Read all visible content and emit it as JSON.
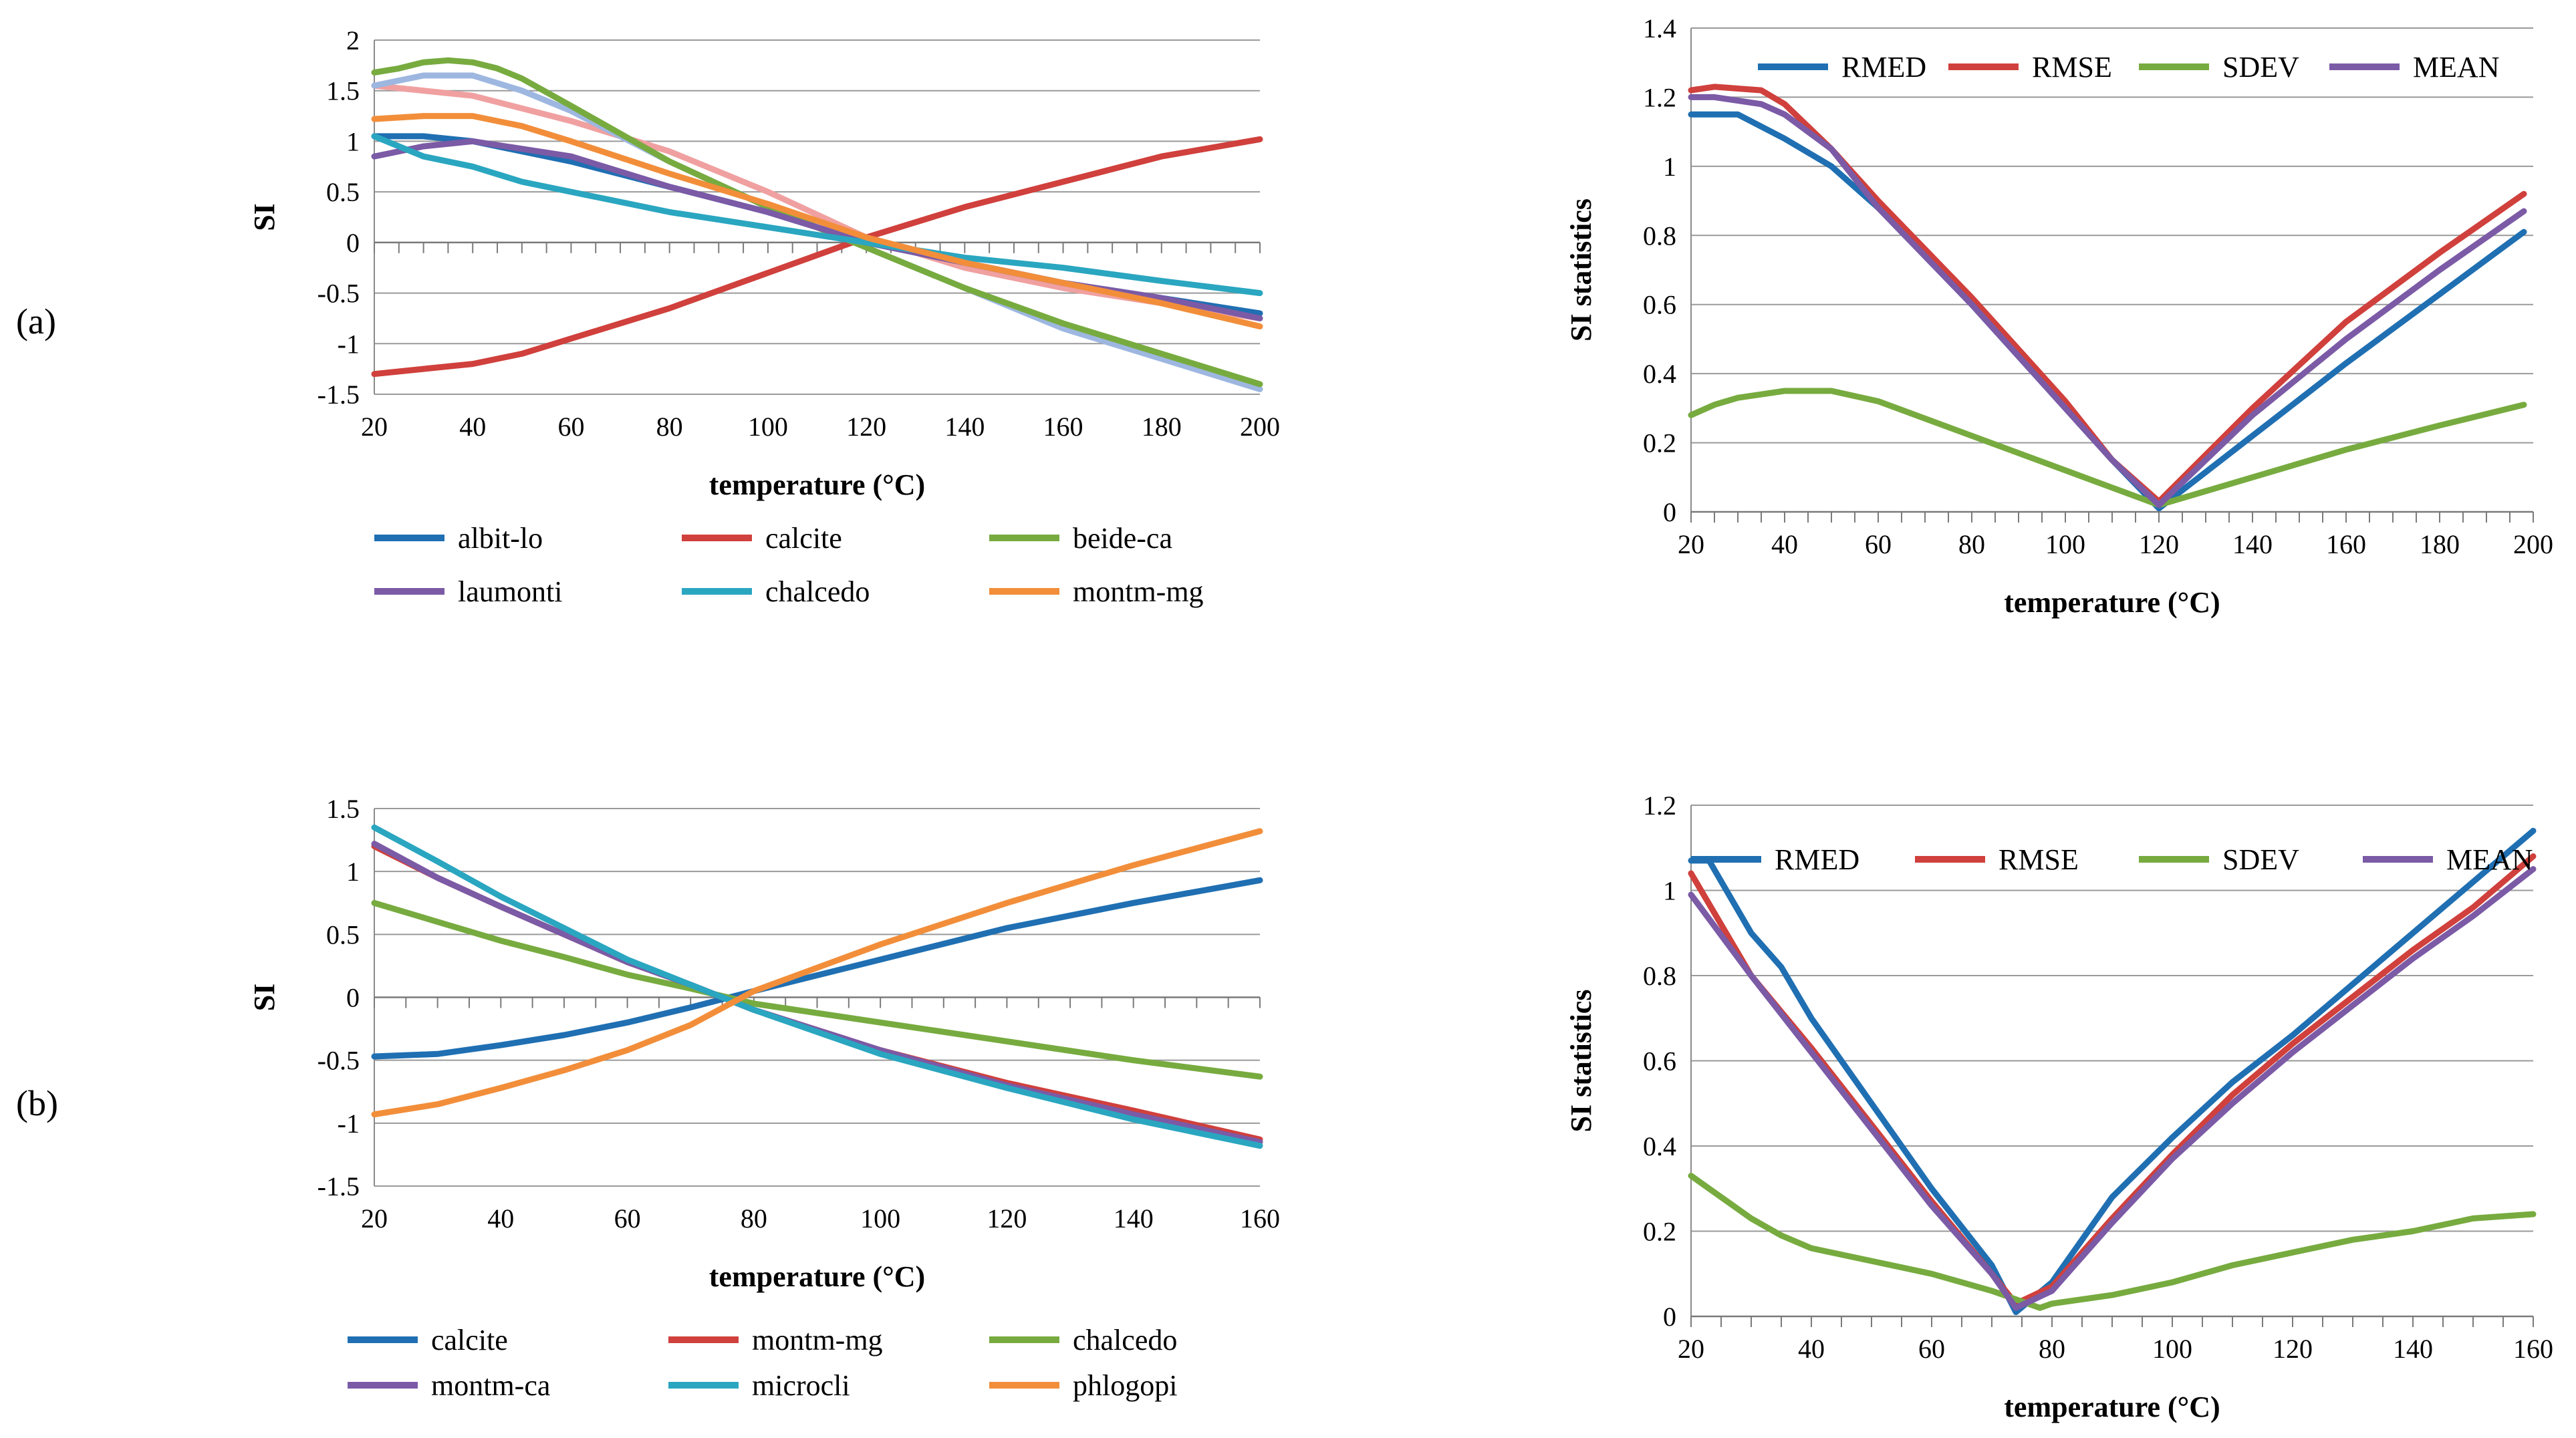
{
  "panel_labels": [
    "(a)",
    "(b)"
  ],
  "chart_data": [
    {
      "id": "a-left",
      "type": "line",
      "title": "",
      "xlabel": "temperature (°C)",
      "ylabel": "SI",
      "xlim": [
        20,
        200
      ],
      "ylim": [
        -1.5,
        2
      ],
      "xticks": [
        20,
        40,
        60,
        80,
        100,
        120,
        140,
        160,
        180,
        200
      ],
      "yticks": [
        -1.5,
        -1,
        -0.5,
        0,
        0.5,
        1,
        1.5,
        2
      ],
      "ytick_labels": [
        "-1.5",
        "-1",
        "-0.5",
        "0",
        "0.5",
        "1",
        "1.5",
        "2"
      ],
      "grid": "horizontal",
      "legend_position": "bottom",
      "legend_columns": 3,
      "series": [
        {
          "name": "pink-unlabeled",
          "legend": false,
          "color": "#f0a0a0",
          "x": [
            20,
            40,
            60,
            80,
            100,
            120,
            140,
            160,
            180,
            200
          ],
          "y": [
            1.55,
            1.45,
            1.2,
            0.9,
            0.5,
            0.05,
            -0.25,
            -0.45,
            -0.6,
            -0.75
          ]
        },
        {
          "name": "lightblue-unlabeled",
          "legend": false,
          "color": "#9db7e0",
          "x": [
            20,
            30,
            40,
            50,
            60,
            80,
            100,
            120,
            140,
            160,
            180,
            200
          ],
          "y": [
            1.55,
            1.65,
            1.65,
            1.5,
            1.3,
            0.8,
            0.35,
            -0.05,
            -0.45,
            -0.85,
            -1.15,
            -1.45
          ]
        },
        {
          "name": "albit-lo",
          "legend": true,
          "color": "#1f6fb2",
          "x": [
            20,
            30,
            40,
            60,
            80,
            100,
            120,
            140,
            160,
            180,
            200
          ],
          "y": [
            1.05,
            1.05,
            1.0,
            0.8,
            0.55,
            0.3,
            0.0,
            -0.2,
            -0.4,
            -0.55,
            -0.7
          ]
        },
        {
          "name": "calcite",
          "legend": true,
          "color": "#d0403c",
          "x": [
            20,
            30,
            40,
            50,
            60,
            80,
            100,
            120,
            140,
            160,
            180,
            200
          ],
          "y": [
            -1.3,
            -1.25,
            -1.2,
            -1.1,
            -0.95,
            -0.65,
            -0.3,
            0.05,
            0.35,
            0.6,
            0.85,
            1.02
          ]
        },
        {
          "name": "beide-ca",
          "legend": true,
          "color": "#77ab3f",
          "x": [
            20,
            25,
            30,
            35,
            40,
            45,
            50,
            60,
            80,
            100,
            120,
            140,
            160,
            180,
            200
          ],
          "y": [
            1.68,
            1.72,
            1.78,
            1.8,
            1.78,
            1.72,
            1.62,
            1.35,
            0.8,
            0.35,
            -0.05,
            -0.45,
            -0.8,
            -1.1,
            -1.4
          ]
        },
        {
          "name": "laumonti",
          "legend": true,
          "color": "#7b5aa6",
          "x": [
            20,
            30,
            40,
            60,
            80,
            100,
            120,
            140,
            160,
            180,
            200
          ],
          "y": [
            0.85,
            0.95,
            1.0,
            0.85,
            0.55,
            0.3,
            0.0,
            -0.2,
            -0.4,
            -0.55,
            -0.75
          ]
        },
        {
          "name": "chalcedo",
          "legend": true,
          "color": "#2aa6c0",
          "x": [
            20,
            30,
            40,
            50,
            60,
            80,
            100,
            120,
            140,
            160,
            180,
            200
          ],
          "y": [
            1.05,
            0.85,
            0.75,
            0.6,
            0.5,
            0.3,
            0.15,
            0.0,
            -0.15,
            -0.25,
            -0.38,
            -0.5
          ]
        },
        {
          "name": "montm-mg",
          "legend": true,
          "color": "#f28e3a",
          "x": [
            20,
            30,
            40,
            50,
            60,
            80,
            100,
            120,
            140,
            160,
            180,
            200
          ],
          "y": [
            1.22,
            1.25,
            1.25,
            1.15,
            1.0,
            0.68,
            0.38,
            0.05,
            -0.2,
            -0.4,
            -0.6,
            -0.83
          ]
        }
      ]
    },
    {
      "id": "a-right",
      "type": "line",
      "title": "",
      "xlabel": "temperature (°C)",
      "ylabel": "SI statistics",
      "xlim": [
        20,
        200
      ],
      "ylim": [
        0,
        1.4
      ],
      "xticks": [
        20,
        40,
        60,
        80,
        100,
        120,
        140,
        160,
        180,
        200
      ],
      "yticks": [
        0,
        0.2,
        0.4,
        0.6,
        0.8,
        1,
        1.2,
        1.4
      ],
      "ytick_labels": [
        "0",
        "0.2",
        "0.4",
        "0.6",
        "0.8",
        "1",
        "1.2",
        "1.4"
      ],
      "grid": "horizontal",
      "legend_position": "top",
      "legend_columns": 4,
      "series": [
        {
          "name": "RMED",
          "legend": true,
          "color": "#1f6fb2",
          "x": [
            20,
            30,
            40,
            50,
            60,
            80,
            100,
            110,
            120,
            140,
            160,
            180,
            198
          ],
          "y": [
            1.15,
            1.15,
            1.08,
            1.0,
            0.88,
            0.6,
            0.3,
            0.15,
            0.01,
            0.22,
            0.43,
            0.63,
            0.81
          ]
        },
        {
          "name": "RMSE",
          "legend": true,
          "color": "#d0403c",
          "x": [
            20,
            25,
            35,
            40,
            50,
            60,
            80,
            100,
            110,
            120,
            140,
            160,
            180,
            198
          ],
          "y": [
            1.22,
            1.23,
            1.22,
            1.18,
            1.05,
            0.9,
            0.62,
            0.32,
            0.15,
            0.03,
            0.3,
            0.55,
            0.75,
            0.92
          ]
        },
        {
          "name": "SDEV",
          "legend": true,
          "color": "#77ab3f",
          "x": [
            20,
            25,
            30,
            40,
            50,
            60,
            80,
            100,
            110,
            120,
            130,
            140,
            160,
            180,
            198
          ],
          "y": [
            0.28,
            0.31,
            0.33,
            0.35,
            0.35,
            0.32,
            0.22,
            0.12,
            0.07,
            0.02,
            0.06,
            0.1,
            0.18,
            0.25,
            0.31
          ]
        },
        {
          "name": "MEAN",
          "legend": true,
          "color": "#7b5aa6",
          "x": [
            20,
            25,
            35,
            40,
            50,
            60,
            80,
            100,
            110,
            120,
            140,
            160,
            180,
            198
          ],
          "y": [
            1.2,
            1.2,
            1.18,
            1.15,
            1.05,
            0.88,
            0.6,
            0.3,
            0.15,
            0.02,
            0.28,
            0.5,
            0.7,
            0.87
          ]
        }
      ]
    },
    {
      "id": "b-left",
      "type": "line",
      "title": "",
      "xlabel": "temperature (°C)",
      "ylabel": "SI",
      "xlim": [
        20,
        160
      ],
      "ylim": [
        -1.5,
        1.5
      ],
      "xticks": [
        20,
        40,
        60,
        80,
        100,
        120,
        140,
        160
      ],
      "yticks": [
        -1.5,
        -1,
        -0.5,
        0,
        0.5,
        1,
        1.5
      ],
      "ytick_labels": [
        "-1.5",
        "-1",
        "-0.5",
        "0",
        "0.5",
        "1",
        "1.5"
      ],
      "grid": "horizontal",
      "legend_position": "bottom",
      "legend_columns": 3,
      "series": [
        {
          "name": "calcite",
          "legend": true,
          "color": "#1f6fb2",
          "x": [
            20,
            30,
            40,
            50,
            60,
            70,
            80,
            100,
            120,
            140,
            160
          ],
          "y": [
            -0.47,
            -0.45,
            -0.38,
            -0.3,
            -0.2,
            -0.08,
            0.05,
            0.3,
            0.55,
            0.75,
            0.93
          ]
        },
        {
          "name": "montm-mg",
          "legend": true,
          "color": "#d0403c",
          "x": [
            20,
            30,
            40,
            50,
            60,
            70,
            80,
            100,
            120,
            140,
            160
          ],
          "y": [
            1.2,
            0.95,
            0.72,
            0.5,
            0.28,
            0.1,
            -0.1,
            -0.42,
            -0.68,
            -0.9,
            -1.13
          ]
        },
        {
          "name": "chalcedo",
          "legend": true,
          "color": "#77ab3f",
          "x": [
            20,
            30,
            40,
            50,
            60,
            70,
            80,
            100,
            120,
            140,
            160
          ],
          "y": [
            0.75,
            0.6,
            0.45,
            0.32,
            0.18,
            0.07,
            -0.05,
            -0.2,
            -0.35,
            -0.5,
            -0.63
          ]
        },
        {
          "name": "montm-ca",
          "legend": true,
          "color": "#7b5aa6",
          "x": [
            20,
            30,
            40,
            50,
            60,
            70,
            80,
            100,
            120,
            140,
            160
          ],
          "y": [
            1.22,
            0.95,
            0.72,
            0.5,
            0.28,
            0.1,
            -0.1,
            -0.42,
            -0.7,
            -0.93,
            -1.15
          ]
        },
        {
          "name": "microcli",
          "legend": true,
          "color": "#2aa6c0",
          "x": [
            20,
            30,
            40,
            50,
            60,
            70,
            80,
            100,
            120,
            140,
            160
          ],
          "y": [
            1.35,
            1.08,
            0.8,
            0.55,
            0.3,
            0.1,
            -0.1,
            -0.45,
            -0.72,
            -0.97,
            -1.18
          ]
        },
        {
          "name": "phlogopi",
          "legend": true,
          "color": "#f28e3a",
          "x": [
            20,
            30,
            40,
            50,
            60,
            70,
            80,
            100,
            120,
            140,
            160
          ],
          "y": [
            -0.93,
            -0.85,
            -0.72,
            -0.58,
            -0.42,
            -0.22,
            0.05,
            0.42,
            0.75,
            1.05,
            1.32
          ]
        }
      ]
    },
    {
      "id": "b-right",
      "type": "line",
      "title": "",
      "xlabel": "temperature (°C)",
      "ylabel": "SI statistics",
      "xlim": [
        20,
        160
      ],
      "ylim": [
        0,
        1.2
      ],
      "xticks": [
        20,
        40,
        60,
        80,
        100,
        120,
        140,
        160
      ],
      "yticks": [
        0,
        0.2,
        0.4,
        0.6,
        0.8,
        1,
        1.2
      ],
      "ytick_labels": [
        "0",
        "0.2",
        "0.4",
        "0.6",
        "0.8",
        "1",
        "1.2"
      ],
      "grid": "horizontal",
      "legend_position": "top",
      "legend_columns": 4,
      "series": [
        {
          "name": "RMED",
          "legend": true,
          "color": "#1f6fb2",
          "x": [
            20,
            23,
            30,
            35,
            40,
            50,
            60,
            70,
            74,
            80,
            90,
            100,
            110,
            120,
            130,
            140,
            150,
            160
          ],
          "y": [
            1.07,
            1.07,
            0.9,
            0.82,
            0.7,
            0.5,
            0.3,
            0.12,
            0.01,
            0.08,
            0.28,
            0.42,
            0.55,
            0.66,
            0.78,
            0.9,
            1.02,
            1.14
          ]
        },
        {
          "name": "RMSE",
          "legend": true,
          "color": "#d0403c",
          "x": [
            20,
            30,
            40,
            50,
            60,
            70,
            74,
            80,
            90,
            100,
            110,
            120,
            130,
            140,
            150,
            160
          ],
          "y": [
            1.04,
            0.8,
            0.63,
            0.45,
            0.27,
            0.1,
            0.03,
            0.07,
            0.23,
            0.38,
            0.52,
            0.64,
            0.75,
            0.86,
            0.96,
            1.08
          ]
        },
        {
          "name": "SDEV",
          "legend": true,
          "color": "#77ab3f",
          "x": [
            20,
            30,
            35,
            40,
            50,
            60,
            70,
            78,
            80,
            90,
            100,
            110,
            120,
            130,
            140,
            150,
            160
          ],
          "y": [
            0.33,
            0.23,
            0.19,
            0.16,
            0.13,
            0.1,
            0.06,
            0.02,
            0.03,
            0.05,
            0.08,
            0.12,
            0.15,
            0.18,
            0.2,
            0.23,
            0.24
          ]
        },
        {
          "name": "MEAN",
          "legend": true,
          "color": "#7b5aa6",
          "x": [
            20,
            30,
            40,
            50,
            60,
            70,
            74,
            80,
            90,
            100,
            110,
            120,
            130,
            140,
            150,
            160
          ],
          "y": [
            0.99,
            0.8,
            0.62,
            0.44,
            0.26,
            0.1,
            0.02,
            0.06,
            0.22,
            0.37,
            0.5,
            0.62,
            0.73,
            0.84,
            0.94,
            1.05
          ]
        }
      ]
    }
  ]
}
